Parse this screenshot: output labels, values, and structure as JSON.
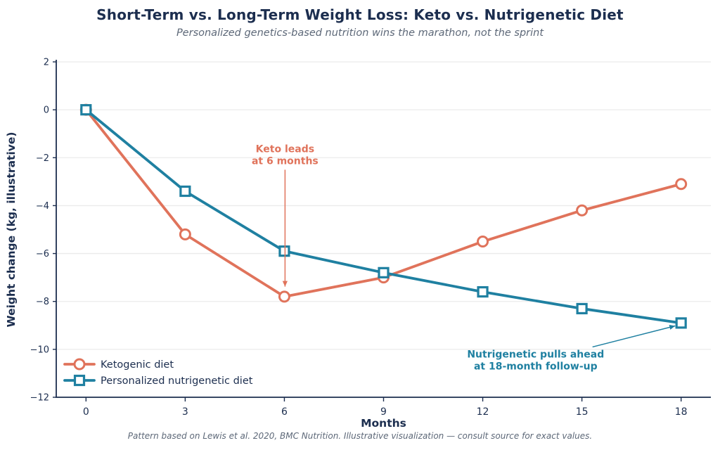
{
  "header": {
    "title": "Short-Term vs. Long-Term Weight Loss: Keto vs. Nutrigenetic Diet",
    "subtitle": "Personalized genetics-based nutrition wins the marathon, not the sprint"
  },
  "footer": {
    "note": "Pattern based on Lewis et al. 2020, BMC Nutrition. Illustrative visualization — consult source for exact values."
  },
  "colors": {
    "text_navy": "#1c2e4f",
    "muted_gray": "#5d6878",
    "grid": "#ebebeb",
    "background": "#ffffff",
    "keto": "#e0735b",
    "nutrigenetic": "#1f80a1"
  },
  "chart_data": {
    "type": "line",
    "title": "Short-Term vs. Long-Term Weight Loss: Keto vs. Nutrigenetic Diet",
    "subtitle": "Personalized genetics-based nutrition wins the marathon, not the sprint",
    "xlabel": "Months",
    "ylabel": "Weight change (kg, illustrative)",
    "x": [
      0,
      3,
      6,
      9,
      12,
      15,
      18
    ],
    "series": [
      {
        "id": "keto",
        "name": "Ketogenic diet",
        "marker": "circle",
        "color": "#e0735b",
        "values": [
          0,
          -5.2,
          -7.8,
          -7.0,
          -5.5,
          -4.2,
          -3.1
        ]
      },
      {
        "id": "nutrigenetic",
        "name": "Personalized nutrigenetic diet",
        "marker": "square",
        "color": "#1f80a1",
        "values": [
          0,
          -3.4,
          -5.9,
          -6.8,
          -7.6,
          -8.3,
          -8.9
        ]
      }
    ],
    "xlim": [
      -0.9,
      18.9
    ],
    "ylim": [
      -12,
      2
    ],
    "xticks": [
      0,
      3,
      6,
      9,
      12,
      15,
      18
    ],
    "xtick_labels": [
      "0",
      "3",
      "6",
      "9",
      "12",
      "15",
      "18"
    ],
    "yticks": [
      2,
      0,
      -2,
      -4,
      -6,
      -8,
      -10,
      -12
    ],
    "ytick_labels": [
      "2",
      "0",
      "−2",
      "−4",
      "−6",
      "−8",
      "−10",
      "−12"
    ],
    "grid": "horizontal",
    "legend_position": "lower-left",
    "annotations": [
      {
        "id": "keto-leads",
        "series": "keto",
        "lines": [
          "Keto leads",
          "at 6 months"
        ],
        "text_x": 6.02,
        "text_y": -1.62,
        "arrow_from": [
          6.02,
          -2.5
        ],
        "arrow_to": [
          6.02,
          -7.38
        ]
      },
      {
        "id": "nutrigenetic-pulls-ahead",
        "series": "nutrigenetic",
        "lines": [
          "Nutrigenetic pulls ahead",
          "at 18-month follow-up"
        ],
        "text_x": 13.6,
        "text_y": -10.2,
        "arrow_from": [
          15.32,
          -9.9
        ],
        "arrow_to": [
          17.82,
          -9.02
        ]
      }
    ]
  }
}
